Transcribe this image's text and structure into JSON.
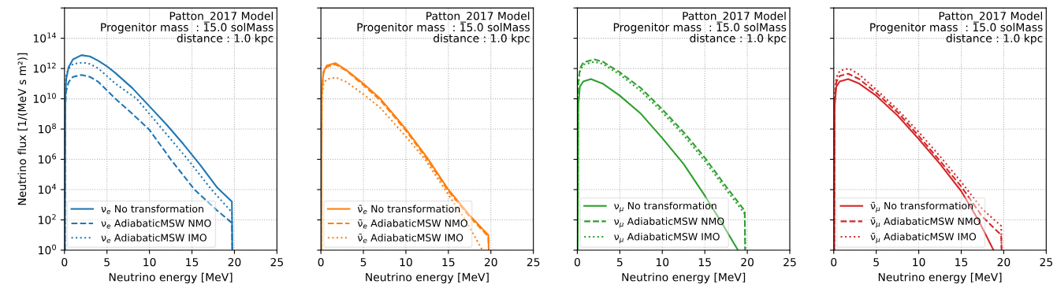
{
  "chart_data": [
    {
      "type": "line",
      "xlabel": "Neutrino energy [MeV]",
      "ylabel": "Neutrino flux [1/(MeV s m²)]",
      "annotations": [
        "Patton_2017 Model\nProgenitor mass  : 15.0 solMass\ndistance : 1.0 kpc"
      ],
      "log": "y",
      "grid": true,
      "legend": "bottom left",
      "xlim": [
        0,
        25
      ],
      "xticks": [
        0,
        5,
        10,
        15,
        20,
        25
      ],
      "ylim": [
        1,
        1e+16
      ],
      "yticks": [
        {
          "value": 1,
          "label": "10$^{0}$"
        },
        {
          "value": 100,
          "label": "10$^{2}$"
        },
        {
          "value": 10000.0,
          "label": "10$^{4}$"
        },
        {
          "value": 1000000.0,
          "label": "10$^{6}$"
        },
        {
          "value": 100000000.0,
          "label": "10$^{8}$"
        },
        {
          "value": 10000000000.0,
          "label": "10$^{10}$"
        },
        {
          "value": 1000000000000.0,
          "label": "10$^{12}$"
        },
        {
          "value": 100000000000000.0,
          "label": "10$^{14}$"
        },
        {
          "value": 1e+16,
          "label": null
        }
      ],
      "series": [
        {
          "name": "ν$_{e}$ No transformation",
          "color": "#1f77b4",
          "line_style": "solid",
          "x": [
            0.05,
            0.1,
            0.2,
            0.5,
            1,
            2,
            3,
            4,
            5,
            6,
            8,
            10,
            12,
            14,
            16,
            18,
            19.7,
            19.75
          ],
          "values": [
            1,
            10000000000.0,
            200000000000.0,
            1300000000000.0,
            4000000000000.0,
            7600000000000.0,
            6300000000000.0,
            3200000000000.0,
            1400000000000.0,
            500000000000.0,
            50000000000.0,
            3200000000.0,
            200000000.0,
            10000000.0,
            400000.0,
            13000.0,
            1600.0,
            1
          ]
        },
        {
          "name": "ν$_{e}$ AdiabaticMSW NMO",
          "color": "#1f77b4",
          "line_style": "dashed",
          "x": [
            0.05,
            0.1,
            0.2,
            0.5,
            1,
            2,
            3,
            4,
            6,
            8,
            10,
            12.5,
            15.3,
            18,
            19.7,
            19.75
          ],
          "values": [
            1,
            3200000000.0,
            32000000000.0,
            130000000000.0,
            280000000000.0,
            380000000000.0,
            280000000000.0,
            130000000000.0,
            10000000000.0,
            1000000000.0,
            89000000.0,
            1000000.0,
            10000.0,
            400,
            63,
            1
          ]
        },
        {
          "name": "ν$_{e}$ AdiabaticMSW IMO",
          "color": "#1f77b4",
          "line_style": "dotted",
          "x": [
            0.05,
            0.1,
            0.2,
            0.5,
            1,
            2.2,
            3,
            4,
            6,
            8.5,
            11.5,
            14.5,
            17.3,
            19.7,
            19.75
          ],
          "values": [
            1,
            63000000000.0,
            400000000000.0,
            1000000000000.0,
            2000000000000.0,
            2500000000000.0,
            2000000000000.0,
            1000000000000.0,
            100000000000.0,
            10000000000.0,
            100000000.0,
            1000000.0,
            10000.0,
            320,
            1
          ]
        }
      ]
    },
    {
      "type": "line",
      "xlabel": "Neutrino energy [MeV]",
      "annotations": [
        "Patton_2017 Model\nProgenitor mass  : 15.0 solMass\ndistance : 1.0 kpc"
      ],
      "log": "y",
      "grid": true,
      "legend": "bottom left",
      "tick_labels": "x",
      "xlim": [
        0,
        25
      ],
      "xticks": [
        0,
        5,
        10,
        15,
        20,
        25
      ],
      "ylim": [
        1,
        1e+16
      ],
      "yticks": [
        {
          "value": 1,
          "label": null
        },
        {
          "value": 100,
          "label": null
        },
        {
          "value": 10000.0,
          "label": null
        },
        {
          "value": 1000000.0,
          "label": null
        },
        {
          "value": 100000000.0,
          "label": null
        },
        {
          "value": 10000000000.0,
          "label": null
        },
        {
          "value": 1000000000000.0,
          "label": null
        },
        {
          "value": 100000000000000.0,
          "label": null
        },
        {
          "value": 1e+16,
          "label": null
        }
      ],
      "series": [
        {
          "name": "ν̄$_{e}$ No transformation",
          "color": "#ff7f0e",
          "line_style": "solid",
          "x": [
            0.05,
            0.1,
            0.3,
            0.7,
            1.7,
            3,
            5,
            7,
            10,
            12.5,
            15,
            17.5,
            19.7,
            19.75
          ],
          "values": [
            1,
            32000000000.0,
            630000000000.0,
            1600000000000.0,
            2300000000000.0,
            790000000000.0,
            100000000000.0,
            10000000000.0,
            100000000.0,
            1300000.0,
            10000.0,
            200,
            10,
            1
          ]
        },
        {
          "name": "ν̄$_{e}$ AdiabaticMSW NMO",
          "color": "#ff7f0e",
          "line_style": "dashed",
          "x": [
            0.05,
            0.1,
            0.3,
            0.7,
            1.7,
            3,
            5,
            7,
            10,
            12.5,
            15,
            17.5,
            19.7,
            19.75
          ],
          "values": [
            1,
            20000000000.0,
            500000000000.0,
            1300000000000.0,
            1900000000000.0,
            710000000000.0,
            79000000000.0,
            7900000000.0,
            79000000.0,
            1000000.0,
            7900.0,
            160,
            7.9,
            1
          ]
        },
        {
          "name": "ν̄$_{e}$ AdiabaticMSW IMO",
          "color": "#ff7f0e",
          "line_style": "dotted",
          "x": [
            0.05,
            0.1,
            0.3,
            0.7,
            1.8,
            3,
            5,
            7,
            10,
            12.25,
            14.6,
            17,
            19.0
          ],
          "values": [
            1,
            10000000000.0,
            100000000000.0,
            200000000000.0,
            250000000000.0,
            130000000000.0,
            20000000000.0,
            2500000000.0,
            32000000.0,
            1000000.0,
            10000.0,
            100,
            1
          ]
        }
      ]
    },
    {
      "type": "line",
      "xlabel": "Neutrino energy [MeV]",
      "annotations": [
        "Patton_2017 Model\nProgenitor mass  : 15.0 solMass\ndistance : 1.0 kpc"
      ],
      "log": "y",
      "grid": true,
      "legend": "bottom left",
      "tick_labels": "x",
      "xlim": [
        0,
        25
      ],
      "xticks": [
        0,
        5,
        10,
        15,
        20,
        25
      ],
      "ylim": [
        1,
        1e+16
      ],
      "yticks": [
        {
          "value": 1,
          "label": null
        },
        {
          "value": 100,
          "label": null
        },
        {
          "value": 10000.0,
          "label": null
        },
        {
          "value": 1000000.0,
          "label": null
        },
        {
          "value": 100000000.0,
          "label": null
        },
        {
          "value": 10000000000.0,
          "label": null
        },
        {
          "value": 1000000000000.0,
          "label": null
        },
        {
          "value": 100000000000000.0,
          "label": null
        },
        {
          "value": 1e+16,
          "label": null
        }
      ],
      "series": [
        {
          "name": "ν$_{μ}$ No transformation",
          "color": "#2ca02c",
          "line_style": "solid",
          "x": [
            0.05,
            0.1,
            0.3,
            0.7,
            1.6,
            3,
            5,
            7.5,
            10,
            12.5,
            15,
            17,
            18.9
          ],
          "values": [
            1,
            3200000000.0,
            63000000000.0,
            140000000000.0,
            200000000000.0,
            100000000000.0,
            16000000000.0,
            1000000000.0,
            25000000.0,
            500000.0,
            4000.0,
            63,
            1
          ]
        },
        {
          "name": "ν$_{μ}$ AdiabaticMSW NMO",
          "color": "#2ca02c",
          "line_style": "dashed",
          "x": [
            0.05,
            0.1,
            0.3,
            0.7,
            2,
            3,
            5,
            7.5,
            10,
            12.5,
            15,
            17.5,
            19.7,
            19.75
          ],
          "values": [
            1,
            100000000000.0,
            1000000000000.0,
            2500000000000.0,
            4000000000000.0,
            2800000000000.0,
            560000000000.0,
            50000000000.0,
            2000000000.0,
            63000000.0,
            1300000.0,
            16000.0,
            400,
            1
          ]
        },
        {
          "name": "ν$_{μ}$ AdiabaticMSW IMO",
          "color": "#2ca02c",
          "line_style": "dotted",
          "x": [
            0.05,
            0.1,
            0.3,
            0.7,
            2,
            3,
            5,
            7.5,
            10,
            12.5,
            15,
            17.5,
            19.7,
            19.75
          ],
          "values": [
            1,
            63000000000.0,
            630000000000.0,
            1800000000000.0,
            2800000000000.0,
            2000000000000.0,
            400000000000.0,
            32000000000.0,
            1300000000.0,
            40000000.0,
            790000.0,
            10000.0,
            250,
            1
          ]
        }
      ]
    },
    {
      "type": "line",
      "xlabel": "Neutrino energy [MeV]",
      "annotations": [
        "Patton_2017 Model\nProgenitor mass  : 15.0 solMass\ndistance : 1.0 kpc"
      ],
      "log": "y",
      "grid": true,
      "legend": "bottom left",
      "tick_labels": "x",
      "xlim": [
        0,
        25
      ],
      "xticks": [
        0,
        5,
        10,
        15,
        20,
        25
      ],
      "ylim": [
        1,
        1e+16
      ],
      "yticks": [
        {
          "value": 1,
          "label": null
        },
        {
          "value": 100,
          "label": null
        },
        {
          "value": 10000.0,
          "label": null
        },
        {
          "value": 1000000.0,
          "label": null
        },
        {
          "value": 100000000.0,
          "label": null
        },
        {
          "value": 10000000000.0,
          "label": null
        },
        {
          "value": 1000000000000.0,
          "label": null
        },
        {
          "value": 100000000000000.0,
          "label": null
        },
        {
          "value": 1e+16,
          "label": null
        }
      ],
      "series": [
        {
          "name": "ν̄$_{μ}$ No transformation",
          "color": "#d62728",
          "line_style": "solid",
          "x": [
            0.05,
            0.1,
            0.3,
            0.7,
            1.7,
            3,
            5,
            7.5,
            10,
            12.5,
            15,
            17,
            18.8
          ],
          "values": [
            1,
            3200000000.0,
            63000000000.0,
            140000000000.0,
            200000000000.0,
            100000000000.0,
            16000000000.0,
            790000000.0,
            22000000.0,
            500000.0,
            7900.0,
            100,
            1
          ]
        },
        {
          "name": "ν̄$_{μ}$ AdiabaticMSW NMO",
          "color": "#d62728",
          "line_style": "dashed",
          "x": [
            0.05,
            0.1,
            0.3,
            0.7,
            1.7,
            3,
            5,
            7.5,
            10,
            12.5,
            15,
            17.5,
            19.7,
            19.75
          ],
          "values": [
            1,
            6300000000.0,
            130000000000.0,
            320000000000.0,
            450000000000.0,
            200000000000.0,
            25000000000.0,
            1300000000.0,
            35000000.0,
            790000.0,
            16000.0,
            160,
            10,
            1
          ]
        },
        {
          "name": "ν̄$_{μ}$ AdiabaticMSW IMO",
          "color": "#d62728",
          "line_style": "dotted",
          "x": [
            0.05,
            0.1,
            0.3,
            0.7,
            1.8,
            3,
            5,
            7.5,
            10,
            12.5,
            15,
            17.5,
            19.7,
            19.75
          ],
          "values": [
            1,
            16000000000.0,
            250000000000.0,
            710000000000.0,
            1000000000000.0,
            400000000000.0,
            40000000000.0,
            2000000000.0,
            63000000.0,
            1600000.0,
            32000.0,
            500,
            40,
            1
          ]
        }
      ]
    }
  ]
}
